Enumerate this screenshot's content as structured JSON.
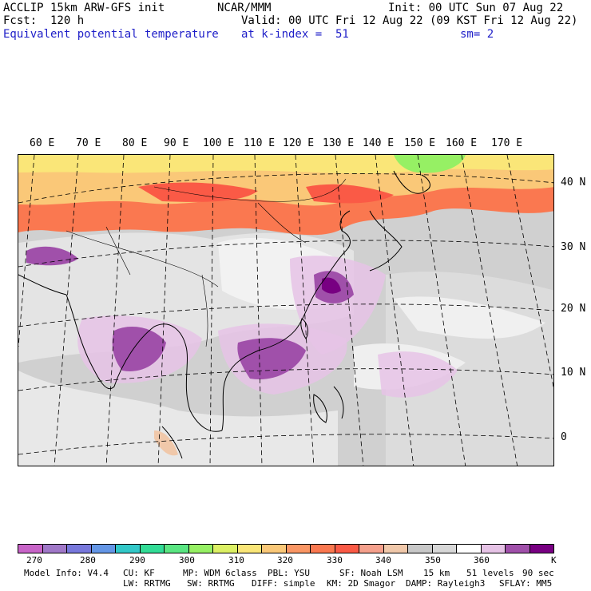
{
  "header": {
    "model_title": "ACCLIP 15km ARW-GFS init",
    "org": "NCAR/MMM",
    "init": "Init: 00 UTC Sun 07 Aug 22",
    "fcst": "Fcst:  120 h",
    "valid": "Valid: 00 UTC Fri 12 Aug 22 (09 KST Fri 12 Aug 22)",
    "field": "Equivalent potential temperature",
    "level": "at k-index =  51",
    "smooth": "sm= 2"
  },
  "map": {
    "lon_labels": [
      "60 E",
      "70 E",
      "80 E",
      "90 E",
      "100 E",
      "110 E",
      "120 E",
      "130 E",
      "140 E",
      "150 E",
      "160 E",
      "170 E"
    ],
    "lat_labels": [
      "40 N",
      "30 N",
      "20 N",
      "10 N",
      "0"
    ]
  },
  "colorbar": {
    "colors": [
      "#c864c8",
      "#a078c8",
      "#7878dc",
      "#6496e6",
      "#32c8c8",
      "#32dc96",
      "#5ae682",
      "#96f064",
      "#dcf064",
      "#fae678",
      "#fac878",
      "#fa9664",
      "#fa7850",
      "#fa5a46",
      "#f5a08c",
      "#f0c8aa",
      "#c8c8c8",
      "#d7d7d7",
      "#ffffff",
      "#e6c3e6",
      "#a050aa",
      "#780082"
    ],
    "tick_labels": [
      "270",
      "280",
      "290",
      "300",
      "310",
      "320",
      "330",
      "340",
      "350",
      "360"
    ],
    "unit": "K"
  },
  "footer": {
    "line1": [
      "Model Info: V4.4",
      "CU: KF",
      "MP: WDM 6class",
      "PBL: YSU",
      "SF: Noah LSM",
      "15 km",
      "51 levels",
      "90 sec"
    ],
    "line2": [
      "LW: RRTMG",
      "SW: RRTMG",
      "DIFF: simple",
      "KM: 2D Smagor",
      "DAMP: Rayleigh3",
      "SFLAY: MM5"
    ]
  }
}
